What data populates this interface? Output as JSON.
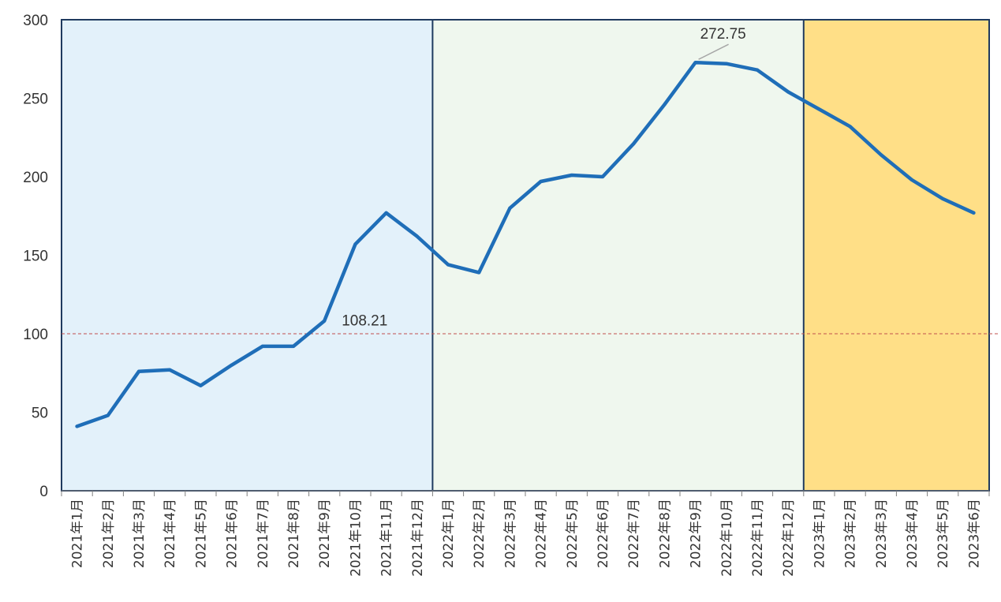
{
  "chart_data": {
    "type": "line",
    "title": "",
    "xlabel": "",
    "ylabel": "",
    "ylim": [
      0,
      300
    ],
    "yticks": [
      0,
      50,
      100,
      150,
      200,
      250,
      300
    ],
    "grid": false,
    "legend": "none",
    "categories": [
      "2021年1月",
      "2021年2月",
      "2021年3月",
      "2021年4月",
      "2021年5月",
      "2021年6月",
      "2021年7月",
      "2021年8月",
      "2021年9月",
      "2021年10月",
      "2021年11月",
      "2021年12月",
      "2022年1月",
      "2022年2月",
      "2022年3月",
      "2022年4月",
      "2022年5月",
      "2022年6月",
      "2022年7月",
      "2022年8月",
      "2022年9月",
      "2022年10月",
      "2022年11月",
      "2022年12月",
      "2023年1月",
      "2023年2月",
      "2023年3月",
      "2023年4月",
      "2023年5月",
      "2023年6月"
    ],
    "series": [
      {
        "color": "#1F6EB8",
        "values": [
          41,
          48,
          76,
          77,
          67,
          80,
          92,
          92,
          108.21,
          157,
          177,
          162,
          144,
          139,
          180,
          197,
          201,
          200,
          221,
          246,
          272.75,
          272,
          268,
          254,
          243,
          232,
          214,
          198,
          186,
          177
        ]
      }
    ],
    "reference_line": {
      "value": 100,
      "color": "#C0504D",
      "style": "dashed"
    },
    "annotations": [
      {
        "category": "2021年9月",
        "text": "108.21"
      },
      {
        "category": "2022年9月",
        "text": "272.75"
      }
    ],
    "bands": [
      {
        "from": "2021年1月",
        "to": "2021年12月",
        "color": "#E3F1FA"
      },
      {
        "from": "2022年1月",
        "to": "2022年12月",
        "color": "#EFF7EE"
      },
      {
        "from": "2023年1月",
        "to": "2023年6月",
        "color": "#FFDF87"
      }
    ]
  }
}
